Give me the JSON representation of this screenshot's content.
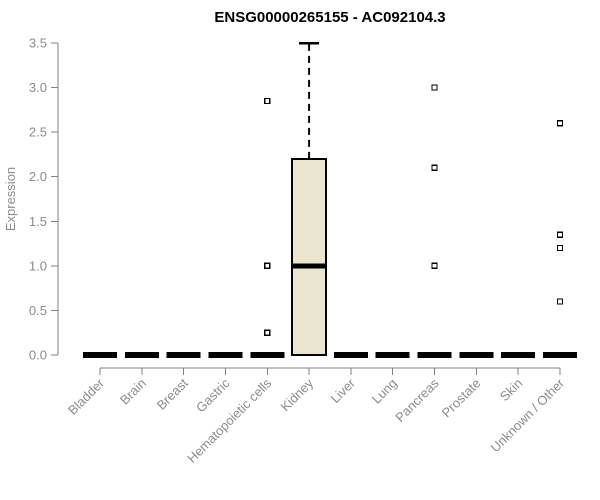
{
  "chart_data": {
    "type": "boxplot",
    "title": "ENSG00000265155 - AC092104.3",
    "xlabel": "",
    "ylabel": "Expression",
    "ylim": [
      0,
      3.5
    ],
    "ytick_labels": [
      "0.0",
      "0.5",
      "1.0",
      "1.5",
      "2.0",
      "2.5",
      "3.0",
      "3.5"
    ],
    "grid": false,
    "legend": false,
    "categories": [
      "Bladder",
      "Brain",
      "Breast",
      "Gastric",
      "Hematopoietic cells",
      "Kidney",
      "Liver",
      "Lung",
      "Pancreas",
      "Prostate",
      "Skin",
      "Unknown / Other"
    ],
    "series": [
      {
        "category": "Bladder",
        "q1": 0,
        "median": 0,
        "q3": 0,
        "whisker_low": 0,
        "whisker_high": 0,
        "outliers": []
      },
      {
        "category": "Brain",
        "q1": 0,
        "median": 0,
        "q3": 0,
        "whisker_low": 0,
        "whisker_high": 0,
        "outliers": []
      },
      {
        "category": "Breast",
        "q1": 0,
        "median": 0,
        "q3": 0,
        "whisker_low": 0,
        "whisker_high": 0,
        "outliers": []
      },
      {
        "category": "Gastric",
        "q1": 0,
        "median": 0,
        "q3": 0,
        "whisker_low": 0,
        "whisker_high": 0,
        "outliers": []
      },
      {
        "category": "Hematopoietic cells",
        "q1": 0,
        "median": 0,
        "q3": 0,
        "whisker_low": 0,
        "whisker_high": 0,
        "outliers": [
          0.25,
          1.0,
          2.85
        ]
      },
      {
        "category": "Kidney",
        "q1": 0,
        "median": 1.0,
        "q3": 2.2,
        "whisker_low": 0,
        "whisker_high": 3.5,
        "outliers": []
      },
      {
        "category": "Liver",
        "q1": 0,
        "median": 0,
        "q3": 0,
        "whisker_low": 0,
        "whisker_high": 0,
        "outliers": []
      },
      {
        "category": "Lung",
        "q1": 0,
        "median": 0,
        "q3": 0,
        "whisker_low": 0,
        "whisker_high": 0,
        "outliers": []
      },
      {
        "category": "Pancreas",
        "q1": 0,
        "median": 0,
        "q3": 0,
        "whisker_low": 0,
        "whisker_high": 0,
        "outliers": [
          1.0,
          2.1,
          3.0
        ]
      },
      {
        "category": "Prostate",
        "q1": 0,
        "median": 0,
        "q3": 0,
        "whisker_low": 0,
        "whisker_high": 0,
        "outliers": []
      },
      {
        "category": "Skin",
        "q1": 0,
        "median": 0,
        "q3": 0,
        "whisker_low": 0,
        "whisker_high": 0,
        "outliers": []
      },
      {
        "category": "Unknown / Other",
        "q1": 0,
        "median": 0,
        "q3": 0,
        "whisker_low": 0,
        "whisker_high": 0,
        "outliers": [
          0.6,
          1.2,
          1.35,
          2.6
        ]
      }
    ]
  },
  "colors": {
    "box_fill": "#eae5ce",
    "box_stroke": "#000000",
    "median": "#000000",
    "zero_bar": "#000000",
    "whisker": "#000000",
    "outlier_stroke": "#000000",
    "outlier_fill": "#ffffff",
    "axis": "#808080",
    "text": "#8c8c8c",
    "title": "#000000",
    "background": "#ffffff"
  }
}
